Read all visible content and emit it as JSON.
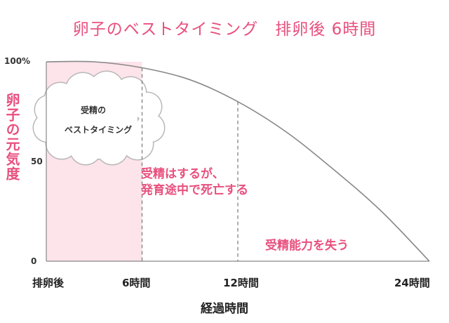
{
  "title": "卵子のベストタイミング　排卵後 6時間",
  "chart_data": {
    "type": "line",
    "title": "卵子のベストタイミング　排卵後 6時間",
    "ylabel": "卵子の元気度",
    "xlabel": "経過時間",
    "x": [
      0,
      3,
      6,
      9,
      12,
      15,
      18,
      21,
      24
    ],
    "values": [
      100,
      100,
      97,
      91,
      80,
      65,
      46,
      25,
      0
    ],
    "xlim": [
      0,
      24
    ],
    "ylim": [
      0,
      100
    ],
    "y_ticks": [
      "100%",
      "50",
      "0"
    ],
    "x_ticks": [
      "排卵後",
      "6時間",
      "12時間",
      "24時間"
    ],
    "highlight_range_hours": [
      0,
      6
    ],
    "highlight_color": "#fde3ea",
    "line_color": "#888888",
    "accent_color": "#e8507e",
    "grid": false
  },
  "cloud": {
    "line1": "受精の",
    "line2": "ベストタイミング"
  },
  "annotations": {
    "mid_line1": "受精はするが、",
    "mid_line2": "発育途中で死亡する",
    "late": "受精能力を失う"
  }
}
